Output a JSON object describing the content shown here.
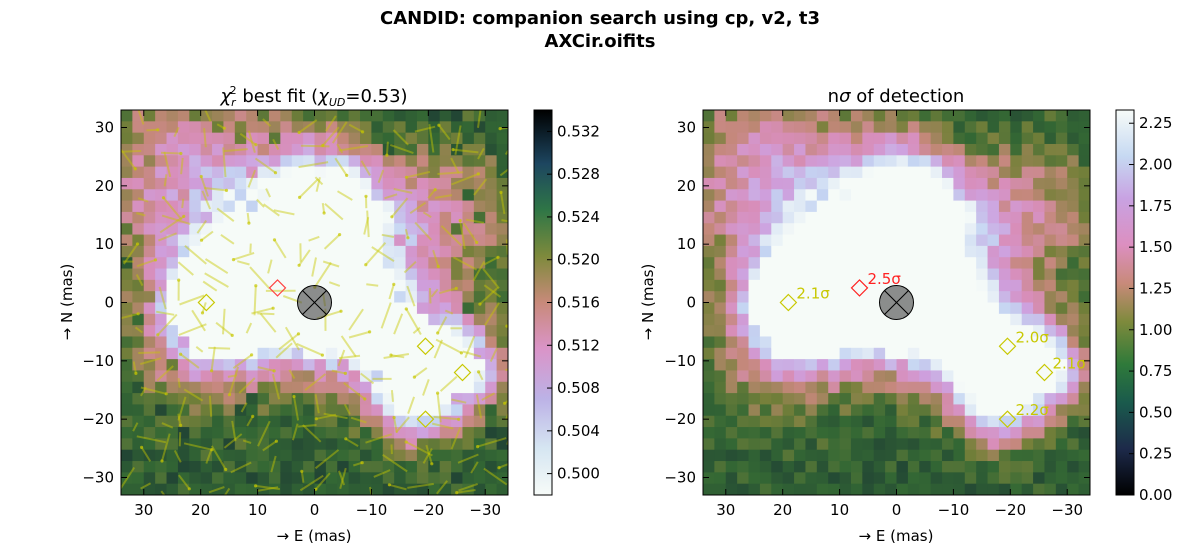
{
  "figure": {
    "title_line1": "CANDID: companion search using cp, v2, t3",
    "title_line2": "AXCir.oifits"
  },
  "chart_data": [
    {
      "type": "heatmap",
      "title_prefix": "χ",
      "title_sub": "r",
      "title_sup": "2",
      "title_mid": " best fit (",
      "title_sub2": "UD",
      "title_end": "=0.53)",
      "xlabel": "→ E (mas)",
      "ylabel": "→ N (mas)",
      "xlim": [
        34,
        -34
      ],
      "ylim": [
        -33,
        33
      ],
      "xticks": [
        "30",
        "20",
        "10",
        "0",
        "−10",
        "−20",
        "−30"
      ],
      "xtick_values": [
        30,
        20,
        10,
        0,
        -10,
        -20,
        -30
      ],
      "yticks": [
        "30",
        "20",
        "10",
        "0",
        "−10",
        "−20",
        "−30"
      ],
      "ytick_values": [
        30,
        20,
        10,
        0,
        -10,
        -20,
        -30
      ],
      "colorbar_min": 0.498,
      "colorbar_max": 0.534,
      "colorbar_ticks": [
        "0.500",
        "0.504",
        "0.508",
        "0.512",
        "0.516",
        "0.520",
        "0.524",
        "0.528",
        "0.532"
      ],
      "colorbar_tick_values": [
        0.5,
        0.504,
        0.508,
        0.512,
        0.516,
        0.52,
        0.524,
        0.528,
        0.532
      ],
      "colormap": "cubehelix_r",
      "star_marker": {
        "x": 0,
        "y": 0
      },
      "best_fit_marker": {
        "x": 6.5,
        "y": 2.5,
        "color": "#ff4444"
      },
      "other_minima": [
        {
          "x": 19,
          "y": 0
        },
        {
          "x": -19.5,
          "y": -7.5
        },
        {
          "x": -26,
          "y": -12
        },
        {
          "x": -19.5,
          "y": -20
        }
      ],
      "minima_color": "#c8c800"
    },
    {
      "type": "heatmap",
      "title_prefix": "n",
      "title_sigma": "σ",
      "title_rest": " of detection",
      "xlabel": "→ E (mas)",
      "ylabel": "→ N (mas)",
      "xlim": [
        34,
        -34
      ],
      "ylim": [
        -33,
        33
      ],
      "xticks": [
        "30",
        "20",
        "10",
        "0",
        "−10",
        "−20",
        "−30"
      ],
      "xtick_values": [
        30,
        20,
        10,
        0,
        -10,
        -20,
        -30
      ],
      "yticks": [
        "30",
        "20",
        "10",
        "0",
        "−10",
        "−20",
        "−30"
      ],
      "ytick_values": [
        30,
        20,
        10,
        0,
        -10,
        -20,
        -30
      ],
      "colorbar_min": 0.0,
      "colorbar_max": 2.33,
      "colorbar_ticks": [
        "0.00",
        "0.25",
        "0.50",
        "0.75",
        "1.00",
        "1.25",
        "1.50",
        "1.75",
        "2.00",
        "2.25"
      ],
      "colorbar_tick_values": [
        0,
        0.25,
        0.5,
        0.75,
        1.0,
        1.25,
        1.5,
        1.75,
        2.0,
        2.25
      ],
      "colormap": "cubehelix",
      "star_marker": {
        "x": 0,
        "y": 0
      },
      "detections": [
        {
          "x": 6.5,
          "y": 2.5,
          "label": "2.5σ",
          "color": "#ff2222"
        },
        {
          "x": 19,
          "y": 0,
          "label": "2.1σ",
          "color": "#c8c800"
        },
        {
          "x": -19.5,
          "y": -7.5,
          "label": "2.0σ",
          "color": "#c8c800"
        },
        {
          "x": -26,
          "y": -12,
          "label": "2.1σ",
          "color": "#c8c800"
        },
        {
          "x": -19.5,
          "y": -20,
          "label": "2.2σ",
          "color": "#c8c800"
        }
      ]
    }
  ]
}
